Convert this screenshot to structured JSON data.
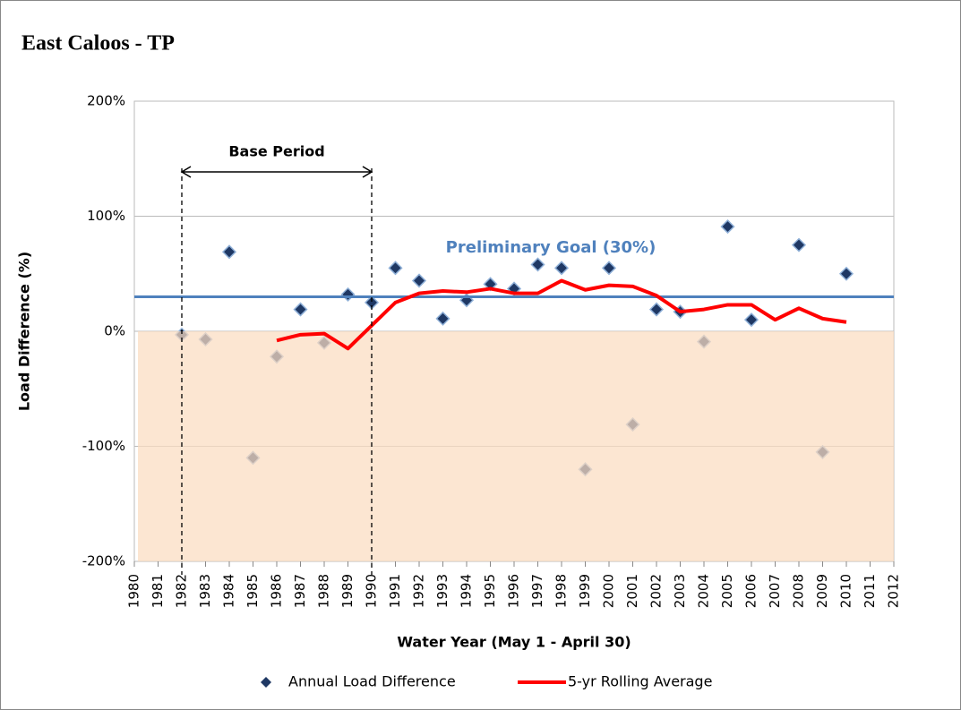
{
  "chart_data": {
    "type": "scatter",
    "title": "East Caloos - TP",
    "x_label": "Water Year (May 1 - April 30)",
    "y_label": "Load Difference (%)",
    "xlim": [
      1980,
      2012
    ],
    "xticks": [
      1980,
      1981,
      1982,
      1983,
      1984,
      1985,
      1986,
      1987,
      1988,
      1989,
      1990,
      1991,
      1992,
      1993,
      1994,
      1995,
      1996,
      1997,
      1998,
      1999,
      2000,
      2001,
      2002,
      2003,
      2004,
      2005,
      2006,
      2007,
      2008,
      2009,
      2010,
      2011,
      2012
    ],
    "ylim": [
      -200,
      200
    ],
    "yticks": [
      {
        "value": -200,
        "label": "-200%"
      },
      {
        "value": -100,
        "label": "-100%"
      },
      {
        "value": 0,
        "label": "0%"
      },
      {
        "value": 100,
        "label": "100%"
      },
      {
        "value": 200,
        "label": "200%"
      }
    ],
    "grid": true,
    "shaded_range": [
      -200,
      0
    ],
    "shade_color": "#fbdcc0",
    "goal": {
      "value": 30,
      "label": "Preliminary Goal (30%)",
      "color": "#4f81bd"
    },
    "annotation": {
      "text": "Base Period",
      "x": [
        1982,
        1990
      ]
    },
    "legend": "bottom",
    "series": [
      {
        "name": "Annual Load Difference",
        "type": "scatter",
        "color": "#1f3864",
        "x": [
          1982,
          1983,
          1984,
          1985,
          1986,
          1987,
          1988,
          1989,
          1990,
          1991,
          1992,
          1993,
          1994,
          1995,
          1996,
          1997,
          1998,
          1999,
          2000,
          2001,
          2002,
          2003,
          2004,
          2005,
          2006,
          2008,
          2009,
          2010
        ],
        "values": [
          -3,
          -7,
          69,
          -110,
          -22,
          19,
          -10,
          32,
          25,
          55,
          44,
          11,
          27,
          41,
          37,
          58,
          55,
          -120,
          55,
          -81,
          19,
          17,
          -9,
          91,
          10,
          75,
          -105,
          50
        ]
      },
      {
        "name": "5-yr Rolling Average",
        "type": "line",
        "color": "#ff0000",
        "x": [
          1986,
          1987,
          1988,
          1989,
          1990,
          1991,
          1992,
          1993,
          1994,
          1995,
          1996,
          1997,
          1998,
          1999,
          2000,
          2001,
          2002,
          2003,
          2004,
          2005,
          2006,
          2007,
          2008,
          2009,
          2010
        ],
        "values": [
          -8,
          -3,
          -2,
          -15,
          5,
          25,
          33,
          35,
          34,
          37,
          33,
          33,
          44,
          36,
          40,
          39,
          31,
          17,
          19,
          23,
          23,
          10,
          20,
          11,
          8
        ]
      }
    ]
  }
}
